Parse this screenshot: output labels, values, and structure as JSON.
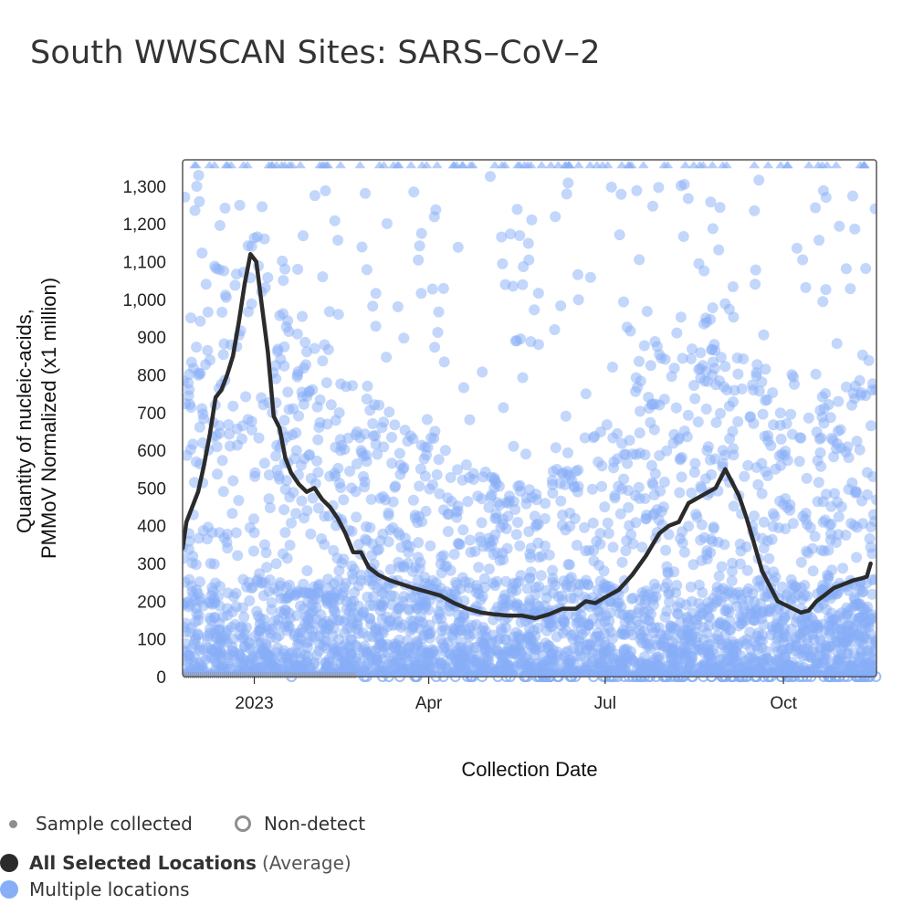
{
  "title": "South WWSCAN Sites: SARS–CoV–2",
  "legend": {
    "sample_collected": "Sample collected",
    "non_detect": "Non-detect",
    "all_selected": "All Selected Locations",
    "average": "(Average)",
    "multiple_locations": "Multiple locations"
  },
  "colors": {
    "average_line": "#2b2b2b",
    "points": "#87aef7",
    "axis_box": "#555555"
  },
  "chart_data": {
    "type": "scatter",
    "title": "South WWSCAN Sites: SARS–CoV–2",
    "xlabel": "Collection Date",
    "ylabel_lines": [
      "Quantity of nucleic-acids,",
      "PMMoV Normalized (x1 million)"
    ],
    "x_range": [
      "2022-11-25",
      "2023-11-18"
    ],
    "ylim": [
      0,
      1370
    ],
    "y_ticks": [
      0,
      100,
      200,
      300,
      400,
      500,
      600,
      700,
      800,
      900,
      1000,
      1100,
      1200,
      1300
    ],
    "y_tick_labels": [
      "0",
      "100",
      "200",
      "300",
      "400",
      "500",
      "600",
      "700",
      "800",
      "900",
      "1,000",
      "1,100",
      "1,200",
      "1,300"
    ],
    "x_ticks": [
      {
        "date": "2023-01-01",
        "label": "2023"
      },
      {
        "date": "2023-04-01",
        "label": "Apr"
      },
      {
        "date": "2023-07-01",
        "label": "Jul"
      },
      {
        "date": "2023-10-01",
        "label": "Oct"
      }
    ],
    "grid": false,
    "series": [
      {
        "name": "All Selected Locations",
        "type": "line",
        "points": [
          [
            "2022-11-25",
            340
          ],
          [
            "2022-11-27",
            410
          ],
          [
            "2022-11-30",
            450
          ],
          [
            "2022-12-03",
            490
          ],
          [
            "2022-12-06",
            560
          ],
          [
            "2022-12-09",
            640
          ],
          [
            "2022-12-12",
            740
          ],
          [
            "2022-12-15",
            760
          ],
          [
            "2022-12-18",
            800
          ],
          [
            "2022-12-21",
            850
          ],
          [
            "2022-12-24",
            940
          ],
          [
            "2022-12-27",
            1040
          ],
          [
            "2022-12-30",
            1120
          ],
          [
            "2023-01-02",
            1100
          ],
          [
            "2023-01-05",
            980
          ],
          [
            "2023-01-08",
            860
          ],
          [
            "2023-01-11",
            690
          ],
          [
            "2023-01-14",
            660
          ],
          [
            "2023-01-17",
            580
          ],
          [
            "2023-01-20",
            540
          ],
          [
            "2023-01-24",
            510
          ],
          [
            "2023-01-28",
            490
          ],
          [
            "2023-02-01",
            500
          ],
          [
            "2023-02-05",
            470
          ],
          [
            "2023-02-09",
            450
          ],
          [
            "2023-02-13",
            420
          ],
          [
            "2023-02-17",
            380
          ],
          [
            "2023-02-21",
            330
          ],
          [
            "2023-02-25",
            330
          ],
          [
            "2023-03-01",
            290
          ],
          [
            "2023-03-06",
            270
          ],
          [
            "2023-03-12",
            255
          ],
          [
            "2023-03-18",
            245
          ],
          [
            "2023-03-24",
            235
          ],
          [
            "2023-03-31",
            225
          ],
          [
            "2023-04-07",
            215
          ],
          [
            "2023-04-14",
            195
          ],
          [
            "2023-04-21",
            180
          ],
          [
            "2023-04-28",
            170
          ],
          [
            "2023-05-05",
            165
          ],
          [
            "2023-05-12",
            162
          ],
          [
            "2023-05-19",
            162
          ],
          [
            "2023-05-26",
            155
          ],
          [
            "2023-06-02",
            165
          ],
          [
            "2023-06-09",
            180
          ],
          [
            "2023-06-16",
            180
          ],
          [
            "2023-06-21",
            200
          ],
          [
            "2023-06-26",
            195
          ],
          [
            "2023-07-01",
            210
          ],
          [
            "2023-07-08",
            230
          ],
          [
            "2023-07-15",
            270
          ],
          [
            "2023-07-22",
            320
          ],
          [
            "2023-07-29",
            380
          ],
          [
            "2023-08-03",
            400
          ],
          [
            "2023-08-08",
            410
          ],
          [
            "2023-08-13",
            460
          ],
          [
            "2023-08-20",
            480
          ],
          [
            "2023-08-27",
            500
          ],
          [
            "2023-09-01",
            550
          ],
          [
            "2023-09-04",
            520
          ],
          [
            "2023-09-08",
            480
          ],
          [
            "2023-09-12",
            420
          ],
          [
            "2023-09-16",
            350
          ],
          [
            "2023-09-20",
            280
          ],
          [
            "2023-09-24",
            240
          ],
          [
            "2023-09-28",
            200
          ],
          [
            "2023-10-02",
            190
          ],
          [
            "2023-10-06",
            180
          ],
          [
            "2023-10-10",
            170
          ],
          [
            "2023-10-14",
            175
          ],
          [
            "2023-10-18",
            200
          ],
          [
            "2023-10-22",
            215
          ],
          [
            "2023-10-27",
            235
          ],
          [
            "2023-11-01",
            245
          ],
          [
            "2023-11-06",
            255
          ],
          [
            "2023-11-10",
            260
          ],
          [
            "2023-11-13",
            265
          ],
          [
            "2023-11-15",
            300
          ]
        ]
      },
      {
        "name": "Multiple locations",
        "type": "scatter",
        "density_envelope": [
          [
            "2022-11-25",
            800
          ],
          [
            "2022-12-25",
            1300
          ],
          [
            "2023-01-15",
            1000
          ],
          [
            "2023-02-15",
            800
          ],
          [
            "2023-03-15",
            700
          ],
          [
            "2023-04-15",
            650
          ],
          [
            "2023-05-15",
            500
          ],
          [
            "2023-06-15",
            600
          ],
          [
            "2023-07-15",
            800
          ],
          [
            "2023-08-15",
            1000
          ],
          [
            "2023-09-01",
            1000
          ],
          [
            "2023-10-01",
            700
          ],
          [
            "2023-11-15",
            800
          ]
        ],
        "overflow_at": 1355
      }
    ]
  }
}
